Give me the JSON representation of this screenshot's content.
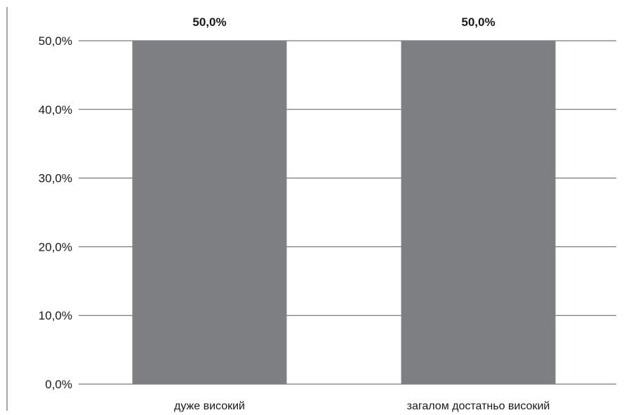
{
  "chart_data": {
    "type": "bar",
    "categories": [
      "дуже високий",
      "загалом достатньо високий"
    ],
    "values": [
      50.0,
      50.0
    ],
    "data_labels": [
      "50,0%",
      "50,0%"
    ],
    "title": "",
    "xlabel": "",
    "ylabel": "",
    "ylim": [
      0,
      50
    ],
    "yticks": [
      0,
      10,
      20,
      30,
      40,
      50
    ],
    "ytick_labels": [
      "0,0%",
      "10,0%",
      "20,0%",
      "30,0%",
      "40,0%",
      "50,0%"
    ],
    "grid": true,
    "legend": "none",
    "bar_color": "#7d7f82",
    "grid_color": "#5a5a5a"
  }
}
